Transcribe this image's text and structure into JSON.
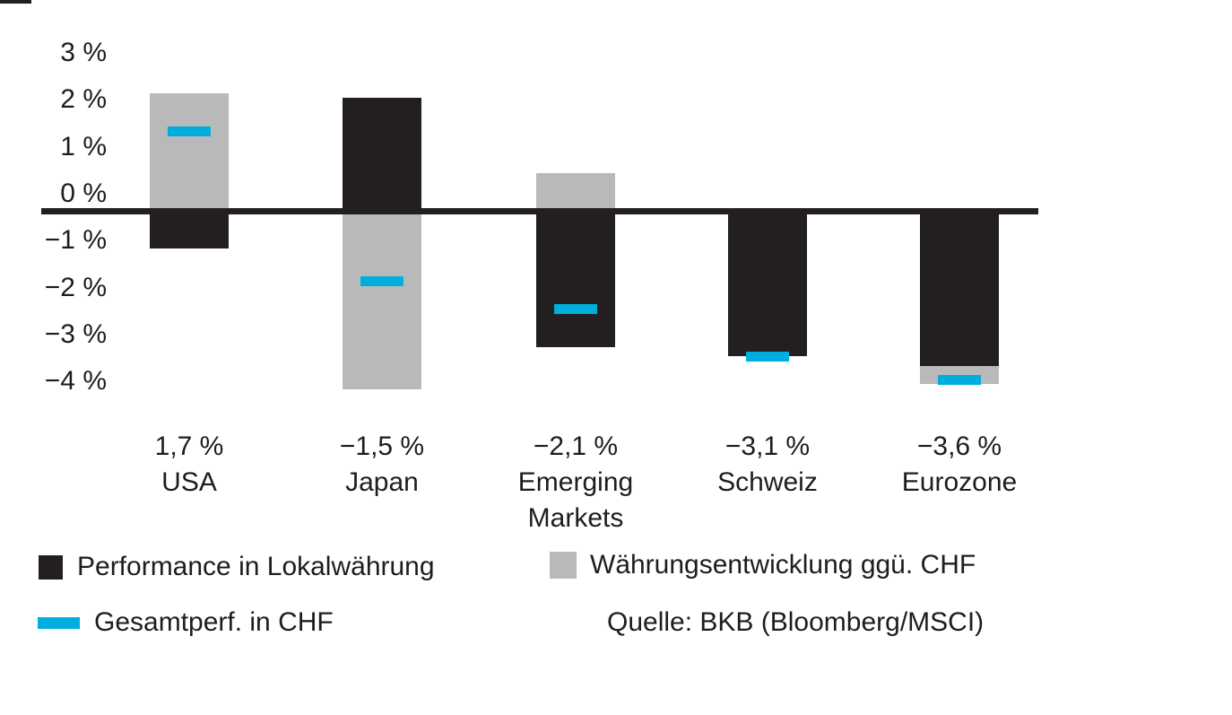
{
  "chart_data": {
    "type": "bar",
    "variant": "stacked_bars_with_total_marker",
    "title": "",
    "xlabel": "",
    "ylabel": "",
    "categories": [
      "USA",
      "Japan",
      "Emerging Markets",
      "Schweiz",
      "Eurozone"
    ],
    "category_lines": [
      [
        "USA"
      ],
      [
        "Japan"
      ],
      [
        "Emerging",
        "Markets"
      ],
      [
        "Schweiz"
      ],
      [
        "Eurozone"
      ]
    ],
    "series": [
      {
        "name": "Performance in Lokalwährung",
        "role": "bar",
        "color": "#231f20",
        "values": [
          -0.8,
          2.4,
          -2.9,
          -3.1,
          -3.3
        ]
      },
      {
        "name": "Währungsentwicklung ggü. CHF",
        "role": "bar",
        "color": "#b9b9b9",
        "values": [
          2.5,
          -3.8,
          0.8,
          0.0,
          -0.4
        ]
      },
      {
        "name": "Gesamtperf. in CHF",
        "role": "marker",
        "color": "#00aedd",
        "values": [
          1.7,
          -1.5,
          -2.1,
          -3.1,
          -3.6
        ]
      }
    ],
    "value_labels": [
      "1,7 %",
      "−1,5 %",
      "−2,1 %",
      "−3,1 %",
      "−3,6 %"
    ],
    "y_ticks": [
      {
        "value": 3,
        "label": "3 %"
      },
      {
        "value": 2,
        "label": "2 %"
      },
      {
        "value": 1,
        "label": "1 %"
      },
      {
        "value": 0,
        "label": "0 %"
      },
      {
        "value": -1,
        "label": "−1 %"
      },
      {
        "value": -2,
        "label": "−2 %"
      },
      {
        "value": -3,
        "label": "−3 %"
      },
      {
        "value": -4,
        "label": "−4 %"
      }
    ],
    "ylim": [
      -4.3,
      3.4
    ],
    "grid": false,
    "zero_line": true,
    "legend_position": "bottom"
  },
  "legend": {
    "items": [
      {
        "label": "Performance in Lokalwährung",
        "swatch": "black-square",
        "color": "#231f20"
      },
      {
        "label": "Gesamtperf. in CHF",
        "swatch": "cyan-bar",
        "color": "#00aedd"
      },
      {
        "label": "Währungsentwicklung ggü. CHF",
        "swatch": "gray-square",
        "color": "#b9b9b9"
      }
    ],
    "source": "Quelle: BKB (Bloomberg/MSCI)"
  },
  "colors": {
    "bar_local": "#231f20",
    "bar_currency": "#b9b9b9",
    "marker_total": "#00aedd",
    "text": "#1d1d1b",
    "background": "#ffffff"
  }
}
